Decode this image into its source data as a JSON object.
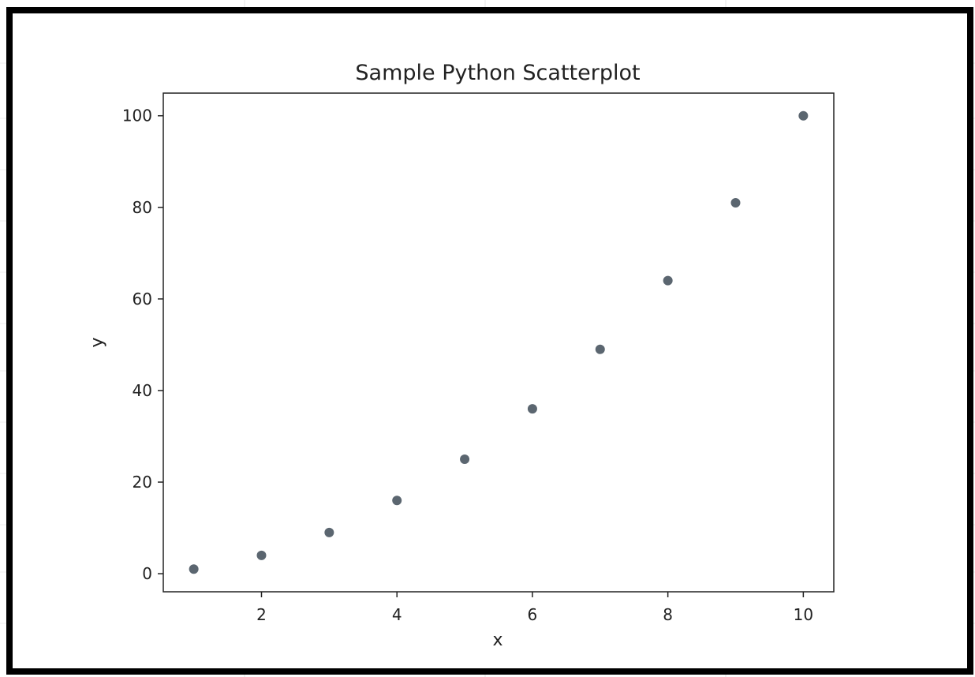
{
  "chart_data": {
    "type": "scatter",
    "title": "Sample Python Scatterplot",
    "xlabel": "x",
    "ylabel": "y",
    "x": [
      1,
      2,
      3,
      4,
      5,
      6,
      7,
      8,
      9,
      10
    ],
    "y": [
      1,
      4,
      9,
      16,
      25,
      36,
      49,
      64,
      81,
      100
    ],
    "xlim": [
      0.55,
      10.45
    ],
    "ylim": [
      -3.95,
      104.95
    ],
    "xticks": [
      2,
      4,
      6,
      8,
      10
    ],
    "yticks": [
      0,
      20,
      40,
      60,
      80,
      100
    ],
    "grid": false,
    "marker_color": "#5b6670",
    "axis_color": "#222222"
  }
}
